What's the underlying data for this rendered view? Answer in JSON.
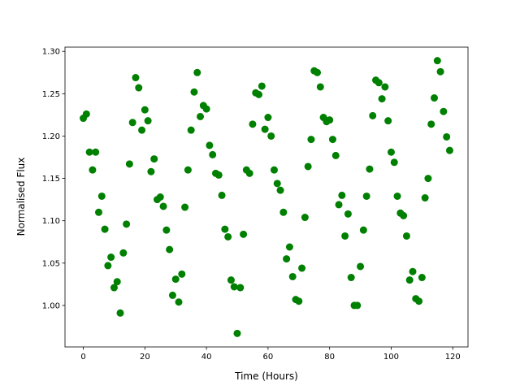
{
  "chart_data": {
    "type": "scatter",
    "x_label": "Time (Hours)",
    "y_label": "Normalised Flux",
    "color": "#008000",
    "x": [
      0,
      1,
      2,
      3,
      4,
      5,
      6,
      7,
      8,
      9,
      10,
      11,
      12,
      13,
      14,
      15,
      16,
      17,
      18,
      19,
      20,
      21,
      22,
      23,
      24,
      25,
      26,
      27,
      28,
      29,
      30,
      31,
      32,
      33,
      34,
      35,
      36,
      37,
      38,
      39,
      40,
      41,
      42,
      43,
      44,
      45,
      46,
      47,
      48,
      49,
      50,
      51,
      52,
      53,
      54,
      55,
      56,
      57,
      58,
      59,
      60,
      61,
      62,
      63,
      64,
      65,
      66,
      67,
      68,
      69,
      70,
      71,
      72,
      73,
      74,
      75,
      76,
      77,
      78,
      79,
      80,
      81,
      82,
      83,
      84,
      85,
      86,
      87,
      88,
      89,
      90,
      91,
      92,
      93,
      94,
      95,
      96,
      97,
      98,
      99,
      100,
      101,
      102,
      103,
      104,
      105,
      106,
      107,
      108,
      109,
      110,
      111,
      112,
      113,
      114,
      115,
      116,
      117,
      118,
      119
    ],
    "values": [
      1.221,
      1.226,
      1.181,
      1.16,
      1.181,
      1.11,
      1.129,
      1.09,
      1.047,
      1.057,
      1.021,
      1.028,
      0.991,
      1.062,
      1.096,
      1.167,
      1.216,
      1.269,
      1.257,
      1.207,
      1.231,
      1.218,
      1.158,
      1.173,
      1.125,
      1.128,
      1.117,
      1.089,
      1.066,
      1.012,
      1.031,
      1.004,
      1.037,
      1.116,
      1.16,
      1.207,
      1.252,
      1.275,
      1.223,
      1.236,
      1.232,
      1.189,
      1.178,
      1.156,
      1.154,
      1.13,
      1.09,
      1.081,
      1.03,
      1.022,
      0.967,
      1.021,
      1.084,
      1.16,
      1.156,
      1.214,
      1.251,
      1.249,
      1.259,
      1.208,
      1.222,
      1.2,
      1.16,
      1.144,
      1.136,
      1.11,
      1.055,
      1.069,
      1.034,
      1.007,
      1.005,
      1.044,
      1.104,
      1.164,
      1.196,
      1.277,
      1.275,
      1.258,
      1.222,
      1.217,
      1.219,
      1.196,
      1.177,
      1.119,
      1.13,
      1.082,
      1.108,
      1.033,
      1.0,
      1.0,
      1.046,
      1.089,
      1.129,
      1.161,
      1.224,
      1.266,
      1.263,
      1.244,
      1.258,
      1.218,
      1.181,
      1.169,
      1.129,
      1.109,
      1.106,
      1.082,
      1.03,
      1.04,
      1.008,
      1.005,
      1.033,
      1.127,
      1.15,
      1.214,
      1.245,
      1.289,
      1.276,
      1.229,
      1.199,
      1.183
    ],
    "xlim": [
      -5.95,
      124.95
    ],
    "xticks": [
      0,
      20,
      40,
      60,
      80,
      100,
      120
    ],
    "ylim": [
      0.951,
      1.305
    ],
    "yticks": [
      {
        "value": 1.0,
        "label": "1.00"
      },
      {
        "value": 1.05,
        "label": "1.05"
      },
      {
        "value": 1.1,
        "label": "1.10"
      },
      {
        "value": 1.15,
        "label": "1.15"
      },
      {
        "value": 1.2,
        "label": "1.20"
      },
      {
        "value": 1.25,
        "label": "1.25"
      },
      {
        "value": 1.3,
        "label": "1.30"
      }
    ]
  }
}
